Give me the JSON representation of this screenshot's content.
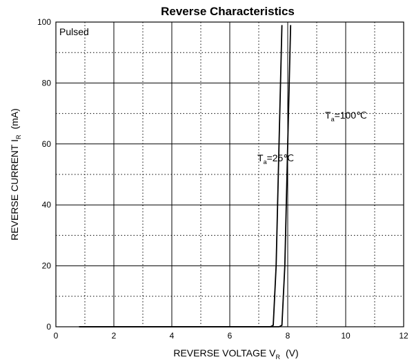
{
  "chart_data": {
    "type": "line",
    "title": "Reverse   Characteristics",
    "xlabel": {
      "main": "REVERSE VOLTAGE   V",
      "sub": "R",
      "unit": "(V)"
    },
    "ylabel": {
      "main": "REVERSE CURRENT   I",
      "sub": "R",
      "unit": "(mA)"
    },
    "xlim": [
      0,
      12
    ],
    "ylim": [
      0,
      100
    ],
    "x_ticks": [
      "0",
      "2",
      "4",
      "6",
      "8",
      "10",
      "12"
    ],
    "y_ticks": [
      "0",
      "20",
      "40",
      "60",
      "80",
      "100"
    ],
    "grid": "solid major, dotted minor",
    "annotation": "Pulsed",
    "series": [
      {
        "label_main": "T",
        "label_sub": "a",
        "label_rest": "=25℃",
        "x": [
          0.8,
          7.4,
          7.5,
          7.6,
          7.7,
          7.8
        ],
        "y": [
          0,
          0,
          0.5,
          20,
          60,
          99
        ]
      },
      {
        "label_main": "T",
        "label_sub": "a",
        "label_rest": "=100℃",
        "x": [
          0.8,
          7.7,
          7.8,
          7.9,
          8.0,
          8.1
        ],
        "y": [
          0,
          0,
          0.5,
          20,
          60,
          99
        ]
      }
    ]
  }
}
